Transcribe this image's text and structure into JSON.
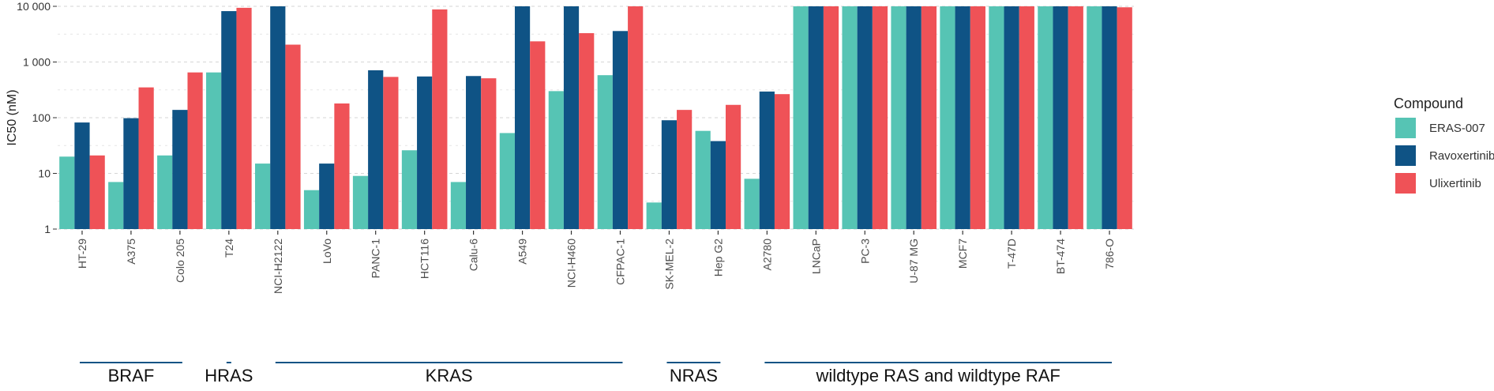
{
  "chart_data": {
    "type": "bar",
    "ylabel": "IC50 (nM)",
    "yscale": "log",
    "ylim": [
      1,
      10000
    ],
    "yticks": [
      {
        "value": 1,
        "label": "1"
      },
      {
        "value": 10,
        "label": "10"
      },
      {
        "value": 100,
        "label": "100"
      },
      {
        "value": 1000,
        "label": "1 000"
      },
      {
        "value": 10000,
        "label": "10 000"
      }
    ],
    "grid": true,
    "legend": {
      "title": "Compound",
      "placement": "right"
    },
    "categories": [
      "HT-29",
      "A375",
      "Colo 205",
      "T24",
      "NCI-H2122",
      "LoVo",
      "PANC-1",
      "HCT116",
      "Calu-6",
      "A549",
      "NCI-H460",
      "CFPAC-1",
      "SK-MEL-2",
      "Hep G2",
      "A2780",
      "LNCaP",
      "PC-3",
      "U-87 MG",
      "MCF7",
      "T-47D",
      "BT-474",
      "786-O"
    ],
    "series": [
      {
        "name": "ERAS-007",
        "color": "#56c4b4",
        "values": [
          20,
          7,
          21,
          650,
          15,
          5,
          9,
          26,
          7,
          53,
          300,
          580,
          3,
          58,
          8,
          10000,
          10000,
          10000,
          10000,
          10000,
          10000,
          10000
        ]
      },
      {
        "name": "Ravoxertinib",
        "color": "#0f5385",
        "values": [
          82,
          98,
          138,
          8200,
          10000,
          15,
          710,
          550,
          560,
          10000,
          10000,
          3600,
          90,
          38,
          295,
          10000,
          10000,
          10000,
          10000,
          10000,
          10000,
          10000
        ]
      },
      {
        "name": "Ulixertinib",
        "color": "#ef5257",
        "values": [
          21,
          350,
          650,
          9400,
          2050,
          180,
          540,
          8800,
          510,
          2350,
          3300,
          10000,
          138,
          170,
          265,
          10000,
          10000,
          10000,
          10000,
          10000,
          10000,
          9600
        ]
      }
    ],
    "groups": [
      {
        "label": "BRAF",
        "start": 0,
        "end": 2
      },
      {
        "label": "HRAS",
        "start": 3,
        "end": 3
      },
      {
        "label": "KRAS",
        "start": 4,
        "end": 11
      },
      {
        "label": "NRAS",
        "start": 12,
        "end": 13
      },
      {
        "label": "wildtype RAS and wildtype RAF",
        "start": 14,
        "end": 21
      }
    ]
  }
}
